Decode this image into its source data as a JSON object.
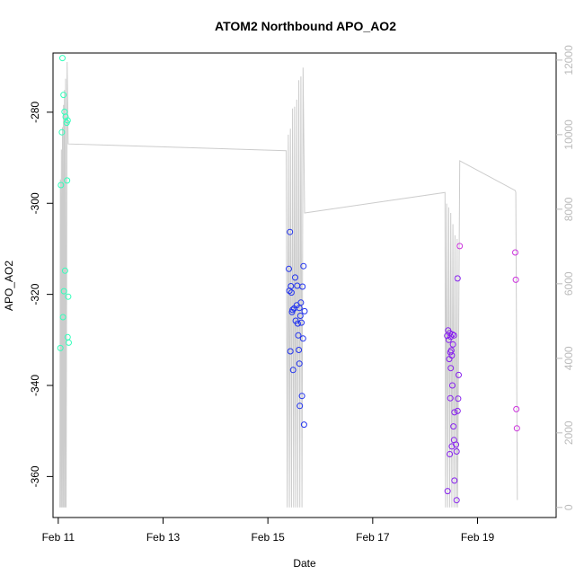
{
  "chart_data": {
    "type": "scatter",
    "title": "ATOM2 Northbound APO_AO2",
    "xlabel": "Date",
    "ylabel": "APO_AO2",
    "xlim": [
      10.9,
      20.5
    ],
    "ylim": [
      -369,
      -267
    ],
    "x_ticks": [
      {
        "value": 11,
        "label": "Feb 11"
      },
      {
        "value": 13,
        "label": "Feb 13"
      },
      {
        "value": 15,
        "label": "Feb 15"
      },
      {
        "value": 17,
        "label": "Feb 17"
      },
      {
        "value": 19,
        "label": "Feb 19"
      }
    ],
    "y_ticks": [
      -280,
      -300,
      -320,
      -340,
      -360
    ],
    "y2_lim": [
      -270,
      12190
    ],
    "y2_ticks": [
      0,
      2000,
      4000,
      6000,
      8000,
      10000,
      12000
    ],
    "y2_color": "#bbbbbb",
    "colors": {
      "early": "#33ffbb",
      "mid": "#2233ee",
      "late": "#8822ee",
      "last": "#cc33dd"
    },
    "series": [
      {
        "name": "points_feb11",
        "color": "#33ffbb",
        "points": [
          [
            11.08,
            -268.1
          ],
          [
            11.1,
            -276.2
          ],
          [
            11.12,
            -279.9
          ],
          [
            11.14,
            -281.0
          ],
          [
            11.16,
            -282.3
          ],
          [
            11.18,
            -281.8
          ],
          [
            11.07,
            -284.4
          ],
          [
            11.05,
            -296.0
          ],
          [
            11.17,
            -295.0
          ],
          [
            11.13,
            -314.8
          ],
          [
            11.11,
            -319.3
          ],
          [
            11.19,
            -320.5
          ],
          [
            11.09,
            -325.0
          ],
          [
            11.18,
            -329.4
          ],
          [
            11.2,
            -330.6
          ],
          [
            11.04,
            -331.8
          ]
        ]
      },
      {
        "name": "points_feb15",
        "color": "#2233ee",
        "points": [
          [
            15.42,
            -306.3
          ],
          [
            15.68,
            -313.8
          ],
          [
            15.4,
            -314.4
          ],
          [
            15.52,
            -316.3
          ],
          [
            15.44,
            -318.2
          ],
          [
            15.56,
            -318.1
          ],
          [
            15.66,
            -318.3
          ],
          [
            15.41,
            -319.2
          ],
          [
            15.45,
            -319.6
          ],
          [
            15.63,
            -321.8
          ],
          [
            15.55,
            -322.4
          ],
          [
            15.5,
            -323.1
          ],
          [
            15.47,
            -323.4
          ],
          [
            15.46,
            -323.9
          ],
          [
            15.6,
            -323.0
          ],
          [
            15.7,
            -323.7
          ],
          [
            15.62,
            -324.7
          ],
          [
            15.53,
            -325.8
          ],
          [
            15.57,
            -326.4
          ],
          [
            15.64,
            -326.2
          ],
          [
            15.58,
            -329.0
          ],
          [
            15.67,
            -329.7
          ],
          [
            15.43,
            -332.5
          ],
          [
            15.59,
            -332.2
          ],
          [
            15.6,
            -335.2
          ],
          [
            15.48,
            -336.6
          ],
          [
            15.65,
            -342.3
          ],
          [
            15.61,
            -344.5
          ],
          [
            15.69,
            -348.6
          ]
        ]
      },
      {
        "name": "points_feb18",
        "color": "#8822ee",
        "points": [
          [
            18.62,
            -316.5
          ],
          [
            18.44,
            -327.9
          ],
          [
            18.47,
            -328.5
          ],
          [
            18.42,
            -329.1
          ],
          [
            18.49,
            -329.3
          ],
          [
            18.52,
            -328.8
          ],
          [
            18.55,
            -329.0
          ],
          [
            18.45,
            -330.0
          ],
          [
            18.53,
            -331.0
          ],
          [
            18.5,
            -332.3
          ],
          [
            18.48,
            -332.7
          ],
          [
            18.51,
            -333.4
          ],
          [
            18.46,
            -334.2
          ],
          [
            18.49,
            -336.2
          ],
          [
            18.64,
            -337.7
          ],
          [
            18.52,
            -340.0
          ],
          [
            18.48,
            -342.8
          ],
          [
            18.63,
            -342.9
          ],
          [
            18.56,
            -345.9
          ],
          [
            18.62,
            -345.6
          ],
          [
            18.54,
            -349.0
          ],
          [
            18.55,
            -352.0
          ],
          [
            18.59,
            -353.0
          ],
          [
            18.51,
            -353.4
          ],
          [
            18.6,
            -354.5
          ],
          [
            18.47,
            -355.1
          ],
          [
            18.56,
            -360.9
          ],
          [
            18.43,
            -363.2
          ],
          [
            18.6,
            -365.2
          ]
        ]
      },
      {
        "name": "points_feb19",
        "color": "#cc33dd",
        "points": [
          [
            18.66,
            -309.4
          ],
          [
            19.72,
            -310.8
          ],
          [
            19.73,
            -316.8
          ],
          [
            19.74,
            -345.2
          ],
          [
            19.75,
            -349.4
          ]
        ]
      }
    ],
    "secondary_line": {
      "name": "y2_series",
      "color": "#cccccc",
      "points": [
        [
          11.03,
          0
        ],
        [
          11.04,
          8800
        ],
        [
          11.05,
          0
        ],
        [
          11.06,
          9600
        ],
        [
          11.07,
          0
        ],
        [
          11.08,
          10200
        ],
        [
          11.09,
          0
        ],
        [
          11.1,
          10800
        ],
        [
          11.11,
          0
        ],
        [
          11.12,
          11200
        ],
        [
          11.13,
          0
        ],
        [
          11.14,
          11500
        ],
        [
          11.15,
          0
        ],
        [
          11.17,
          11950
        ],
        [
          11.19,
          9750
        ],
        [
          15.35,
          9570
        ],
        [
          15.37,
          0
        ],
        [
          15.39,
          10000
        ],
        [
          15.41,
          0
        ],
        [
          15.43,
          10160
        ],
        [
          15.45,
          0
        ],
        [
          15.47,
          10700
        ],
        [
          15.49,
          0
        ],
        [
          15.51,
          10750
        ],
        [
          15.53,
          0
        ],
        [
          15.55,
          10940
        ],
        [
          15.57,
          0
        ],
        [
          15.59,
          11460
        ],
        [
          15.61,
          0
        ],
        [
          15.63,
          11560
        ],
        [
          15.65,
          0
        ],
        [
          15.67,
          11800
        ],
        [
          15.7,
          7900
        ],
        [
          18.38,
          8450
        ],
        [
          18.39,
          0
        ],
        [
          18.41,
          8150
        ],
        [
          18.43,
          0
        ],
        [
          18.45,
          8050
        ],
        [
          18.47,
          0
        ],
        [
          18.49,
          7900
        ],
        [
          18.51,
          0
        ],
        [
          18.53,
          7600
        ],
        [
          18.55,
          0
        ],
        [
          18.57,
          7300
        ],
        [
          18.59,
          0
        ],
        [
          18.61,
          7200
        ],
        [
          18.62,
          0
        ],
        [
          18.66,
          9300
        ],
        [
          19.72,
          8500
        ],
        [
          19.73,
          8450
        ],
        [
          19.76,
          200
        ]
      ]
    }
  }
}
